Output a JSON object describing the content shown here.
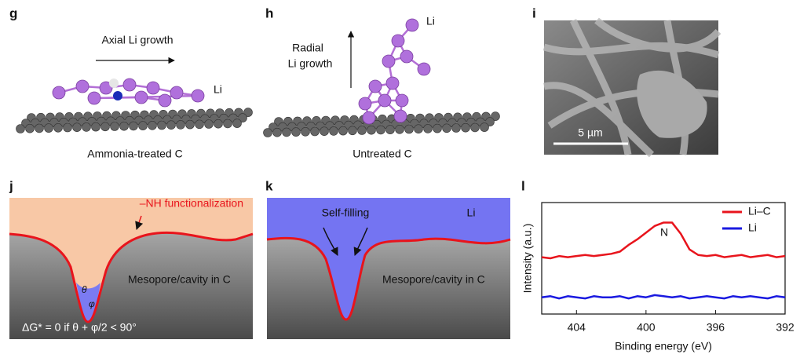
{
  "panels": {
    "g": {
      "label": "g",
      "arrow_label": "Axial Li growth",
      "atom_label": "Li",
      "caption": "Ammonia-treated C"
    },
    "h": {
      "label": "h",
      "arrow_label": [
        "Radial",
        "Li growth"
      ],
      "atom_label": "Li",
      "caption": "Untreated C"
    },
    "i": {
      "label": "i",
      "scale_bar": "5 µm"
    },
    "j": {
      "label": "j",
      "surface_label": "–NH functionalization",
      "region_label": "Mesopore/cavity in C",
      "angle_theta": "θ",
      "angle_phi": "φ",
      "condition": "ΔG* = 0 if θ + φ/2 < 90°"
    },
    "k": {
      "label": "k",
      "arrow_label": "Self-filling",
      "fill_label": "Li",
      "region_label": "Mesopore/cavity in C"
    },
    "l": {
      "label": "l"
    }
  },
  "chart_data": {
    "type": "line",
    "x_label": "Binding energy (eV)",
    "y_label": "Intensity (a.u.)",
    "xlim": [
      406,
      392
    ],
    "xticks": [
      404,
      400,
      396,
      392
    ],
    "ylim": [
      0,
      10
    ],
    "legend": "top-right",
    "annotation": "N",
    "x": [
      406,
      405.5,
      405,
      404.5,
      404,
      403.5,
      403,
      402.5,
      402,
      401.5,
      401,
      400.5,
      400,
      399.5,
      399,
      398.5,
      398,
      397.5,
      397,
      396.5,
      396,
      395.5,
      395,
      394.5,
      394,
      393.5,
      393,
      392.5,
      392
    ],
    "series": [
      {
        "name": "Li–C",
        "color": "#e8141c",
        "values": [
          5.1,
          5.0,
          5.2,
          5.1,
          5.2,
          5.3,
          5.2,
          5.3,
          5.4,
          5.6,
          6.2,
          6.7,
          7.3,
          7.9,
          8.2,
          8.2,
          7.2,
          5.8,
          5.3,
          5.2,
          5.3,
          5.1,
          5.2,
          5.3,
          5.1,
          5.2,
          5.3,
          5.1,
          5.2
        ]
      },
      {
        "name": "Li",
        "color": "#1a1ae0",
        "values": [
          1.5,
          1.6,
          1.4,
          1.6,
          1.5,
          1.4,
          1.6,
          1.5,
          1.5,
          1.6,
          1.4,
          1.6,
          1.5,
          1.7,
          1.6,
          1.5,
          1.6,
          1.4,
          1.5,
          1.6,
          1.5,
          1.4,
          1.6,
          1.5,
          1.6,
          1.5,
          1.4,
          1.6,
          1.5
        ]
      }
    ]
  }
}
